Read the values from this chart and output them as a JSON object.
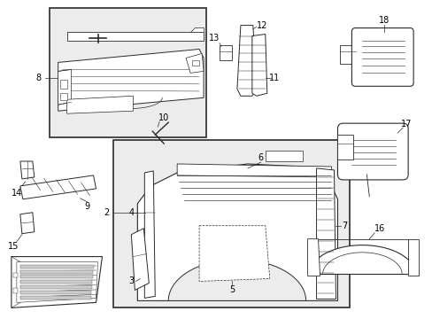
{
  "bg_color": "#ffffff",
  "line_color": "#2a2a2a",
  "label_color": "#000000",
  "fig_w": 4.89,
  "fig_h": 3.6,
  "dpi": 100
}
